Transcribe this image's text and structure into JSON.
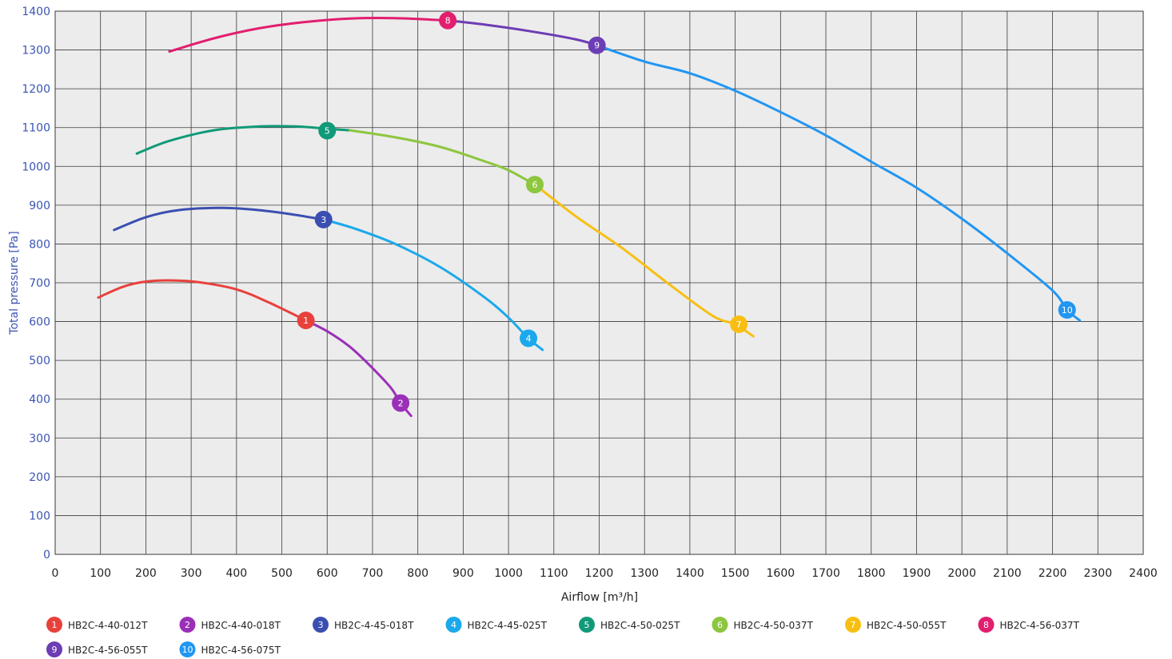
{
  "chart_data": {
    "type": "line",
    "xlabel": "Airflow [m³/h]",
    "ylabel": "Total pressure [Pa]",
    "xlim": [
      0,
      2400
    ],
    "ylim": [
      0,
      1400
    ],
    "x_ticks": [
      0,
      100,
      200,
      300,
      400,
      500,
      600,
      700,
      800,
      900,
      1000,
      1100,
      1200,
      1300,
      1400,
      1500,
      1600,
      1700,
      1800,
      1900,
      2000,
      2100,
      2200,
      2300,
      2400
    ],
    "y_ticks": [
      0,
      100,
      200,
      300,
      400,
      500,
      600,
      700,
      800,
      900,
      1000,
      1100,
      1200,
      1300,
      1400
    ],
    "grid": true,
    "legend_position": "bottom",
    "plot_background": "#ececec",
    "series": [
      {
        "name": "HB2C-4-40-012T",
        "number": "1",
        "color": "#e8413c",
        "points": [
          [
            95,
            662
          ],
          [
            150,
            690
          ],
          [
            200,
            703
          ],
          [
            260,
            706
          ],
          [
            320,
            701
          ],
          [
            400,
            683
          ],
          [
            470,
            650
          ],
          [
            553,
            603
          ]
        ],
        "marker": [
          553,
          603
        ]
      },
      {
        "name": "HB2C-4-40-018T",
        "number": "2",
        "color": "#9b30b8",
        "points": [
          [
            553,
            603
          ],
          [
            600,
            575
          ],
          [
            650,
            535
          ],
          [
            700,
            480
          ],
          [
            740,
            430
          ],
          [
            762,
            390
          ],
          [
            785,
            357
          ]
        ],
        "marker": [
          762,
          390
        ]
      },
      {
        "name": "HB2C-4-45-018T",
        "number": "3",
        "color": "#3a4fb0",
        "points": [
          [
            130,
            836
          ],
          [
            200,
            869
          ],
          [
            270,
            887
          ],
          [
            370,
            893
          ],
          [
            460,
            886
          ],
          [
            530,
            875
          ],
          [
            592,
            863
          ]
        ],
        "marker": [
          592,
          863
        ]
      },
      {
        "name": "HB2C-4-45-025T",
        "number": "4",
        "color": "#1ba8ec",
        "points": [
          [
            592,
            863
          ],
          [
            660,
            840
          ],
          [
            750,
            800
          ],
          [
            850,
            740
          ],
          [
            950,
            660
          ],
          [
            1000,
            610
          ],
          [
            1044,
            557
          ],
          [
            1075,
            527
          ]
        ],
        "marker": [
          1044,
          557
        ]
      },
      {
        "name": "HB2C-4-50-025T",
        "number": "5",
        "color": "#119a78",
        "points": [
          [
            180,
            1033
          ],
          [
            250,
            1065
          ],
          [
            350,
            1093
          ],
          [
            450,
            1103
          ],
          [
            530,
            1103
          ],
          [
            600,
            1097
          ],
          [
            650,
            1093
          ]
        ],
        "marker": [
          600,
          1092
        ]
      },
      {
        "name": "HB2C-4-50-037T",
        "number": "6",
        "color": "#8dc63f",
        "points": [
          [
            650,
            1093
          ],
          [
            750,
            1075
          ],
          [
            850,
            1050
          ],
          [
            950,
            1012
          ],
          [
            1000,
            990
          ],
          [
            1058,
            953
          ]
        ],
        "marker": [
          1058,
          953
        ]
      },
      {
        "name": "HB2C-4-50-055T",
        "number": "7",
        "color": "#f8bf12",
        "points": [
          [
            1058,
            953
          ],
          [
            1150,
            870
          ],
          [
            1250,
            790
          ],
          [
            1350,
            700
          ],
          [
            1450,
            615
          ],
          [
            1500,
            593
          ],
          [
            1540,
            562
          ]
        ],
        "marker": [
          1508,
          593
        ]
      },
      {
        "name": "HB2C-4-56-037T",
        "number": "8",
        "color": "#e21e6f",
        "points": [
          [
            252,
            1296
          ],
          [
            350,
            1330
          ],
          [
            450,
            1356
          ],
          [
            550,
            1372
          ],
          [
            650,
            1381
          ],
          [
            750,
            1382
          ],
          [
            866,
            1376
          ]
        ],
        "marker": [
          866,
          1376
        ]
      },
      {
        "name": "HB2C-4-56-055T",
        "number": "9",
        "color": "#6c3db5",
        "points": [
          [
            866,
            1376
          ],
          [
            950,
            1365
          ],
          [
            1050,
            1348
          ],
          [
            1150,
            1327
          ],
          [
            1195,
            1312
          ]
        ],
        "marker": [
          1195,
          1312
        ]
      },
      {
        "name": "HB2C-4-56-075T",
        "number": "10",
        "color": "#2196f3",
        "points": [
          [
            1195,
            1312
          ],
          [
            1300,
            1270
          ],
          [
            1400,
            1240
          ],
          [
            1500,
            1195
          ],
          [
            1600,
            1140
          ],
          [
            1700,
            1080
          ],
          [
            1800,
            1012
          ],
          [
            1900,
            945
          ],
          [
            2000,
            865
          ],
          [
            2100,
            776
          ],
          [
            2200,
            680
          ],
          [
            2232,
            630
          ],
          [
            2260,
            603
          ]
        ],
        "marker": [
          2232,
          630
        ]
      }
    ]
  }
}
